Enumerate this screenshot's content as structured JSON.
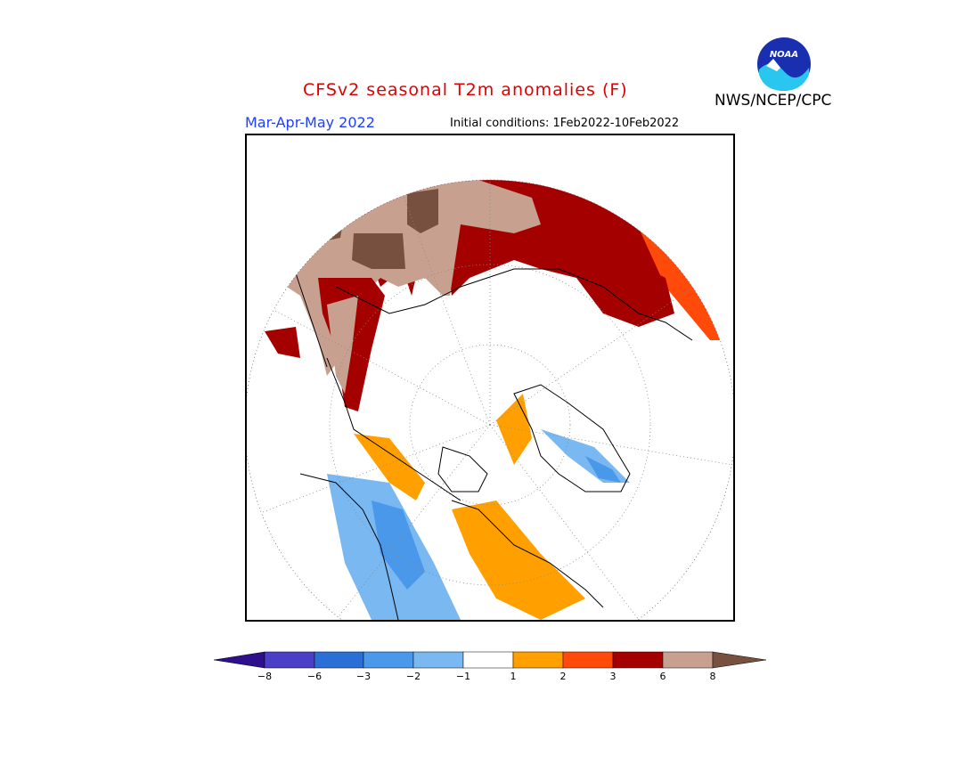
{
  "header": {
    "title": "CFSv2 seasonal T2m anomalies (F)",
    "organization": "NWS/NCEP/CPC",
    "logo_text": "NOAA",
    "season": "Mar-Apr-May 2022",
    "initial_conditions": "Initial conditions: 1Feb2022-10Feb2022"
  },
  "colors": {
    "lt_minus8": "#2e0f8c",
    "m8_m6": "#4b3fc8",
    "m6_m3": "#2a6fd6",
    "m3_m2": "#4a98ea",
    "m2_m1": "#7ab8f2",
    "neutral": "#ffffff",
    "p1_p2": "#ffa000",
    "p2_p3": "#ff4a0a",
    "p3_p6": "#a50000",
    "p6_p8": "#c8a090",
    "gt_p8": "#785040"
  },
  "colorbar": {
    "labels": [
      "−8",
      "−6",
      "−3",
      "−2",
      "−1",
      "1",
      "2",
      "3",
      "6",
      "8"
    ]
  }
}
